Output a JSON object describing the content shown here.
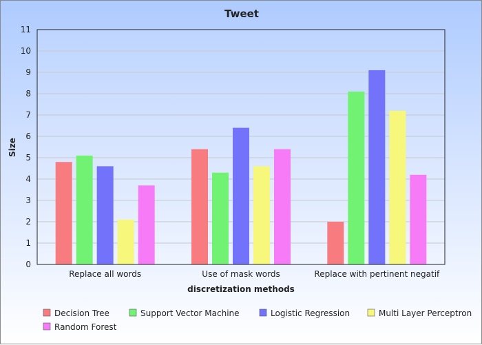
{
  "chart_data": {
    "type": "bar",
    "title": "Tweet",
    "xlabel": "discretization methods",
    "ylabel": "Size",
    "ylim": [
      0,
      11
    ],
    "yticks": [
      0,
      1,
      2,
      3,
      4,
      5,
      6,
      7,
      8,
      9,
      10,
      11
    ],
    "grid": true,
    "legend_position": "bottom",
    "categories": [
      "Replace all words",
      "Use of mask words",
      "Replace with pertinent negatif"
    ],
    "series": [
      {
        "name": "Decision Tree",
        "color": "#f77b7f",
        "values": [
          4.8,
          5.4,
          2.0
        ]
      },
      {
        "name": "Support Vector Machine",
        "color": "#72f272",
        "values": [
          5.1,
          4.3,
          8.1
        ]
      },
      {
        "name": "Logistic Regression",
        "color": "#7272fb",
        "values": [
          4.6,
          6.4,
          9.1
        ]
      },
      {
        "name": "Multi Layer Perceptron",
        "color": "#f7f77b",
        "values": [
          2.1,
          4.6,
          7.2
        ]
      },
      {
        "name": "Random Forest",
        "color": "#f77bf7",
        "values": [
          3.7,
          5.4,
          4.2
        ]
      }
    ]
  }
}
